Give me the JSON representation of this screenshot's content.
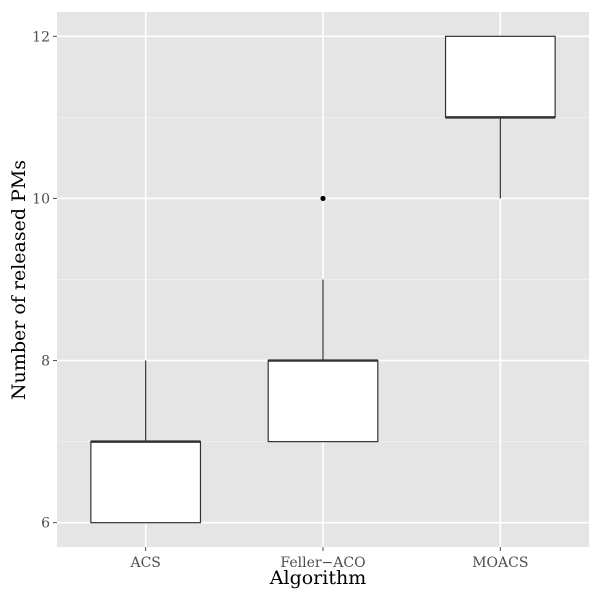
{
  "chart_data": {
    "type": "boxplot",
    "xlabel": "Algorithm",
    "ylabel": "Number of released PMs",
    "categories": [
      "ACS",
      "Feller−ACO",
      "MOACS"
    ],
    "yticks": [
      6,
      8,
      10,
      12
    ],
    "ylim": [
      5.7,
      12.3
    ],
    "grid": true,
    "boxes": [
      {
        "category": "ACS",
        "whisker_low": 6,
        "q1": 6,
        "median": 7,
        "q3": 7,
        "whisker_high": 8,
        "outliers": []
      },
      {
        "category": "Feller−ACO",
        "whisker_low": 7,
        "q1": 7,
        "median": 8,
        "q3": 8,
        "whisker_high": 9,
        "outliers": [
          10
        ]
      },
      {
        "category": "MOACS",
        "whisker_low": 10,
        "q1": 11,
        "median": 11,
        "q3": 12,
        "whisker_high": 12,
        "outliers": []
      }
    ],
    "colors": {
      "panel_background": "#e5e5e5",
      "box_fill": "#ffffff",
      "box_stroke": "#333333"
    }
  }
}
